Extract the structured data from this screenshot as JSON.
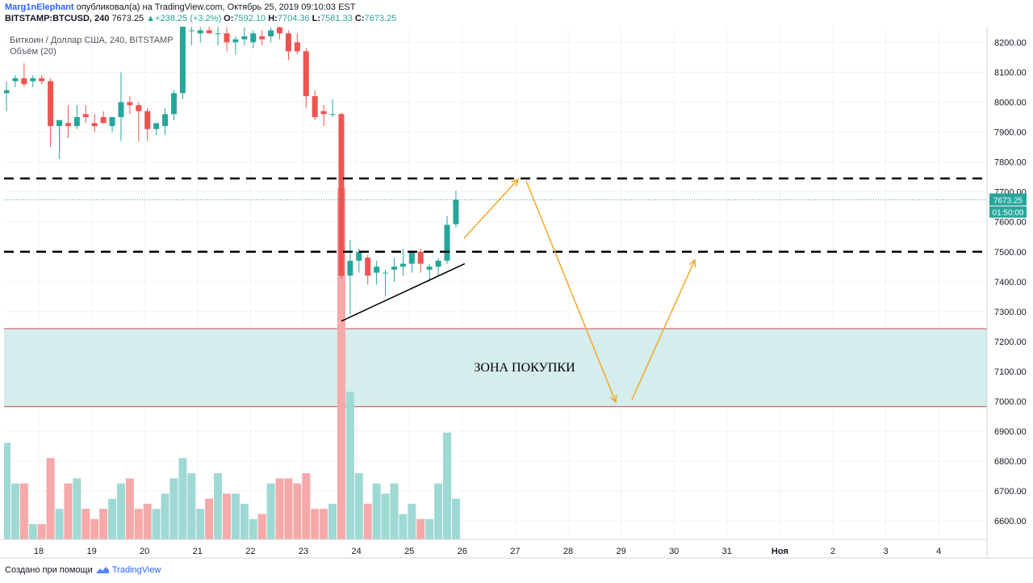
{
  "header": {
    "author": "Marg1nElephant",
    "published_text": "опубликовал(а) на TradingView.com, Октябрь 25, 2019 09:10:03 EST",
    "symbol": "BITSTAMP:BTCUSD, 240",
    "last": "7673.25",
    "change": "+238.25 (+3.2%)",
    "o_label": "O:",
    "o_val": "7592.10",
    "h_label": "H:",
    "h_val": "7704.36",
    "l_label": "L:",
    "l_val": "7581.33",
    "c_label": "C:",
    "c_val": "7673.25"
  },
  "legend": {
    "title": "Биткоин / Доллар США, 240, BITSTAMP",
    "volume": "Объём (20)"
  },
  "footer": {
    "created_text": "Создано при помощи",
    "brand": "TradingView"
  },
  "colors": {
    "up": "#26a69a",
    "down": "#ef5350",
    "up_volume": "#9fd9d3",
    "down_volume": "#f5a9a8",
    "buy_zone": "#d5edec",
    "arrow": "#f5a623",
    "price_tag": "#26a69a"
  },
  "chart_data": {
    "type": "candlestick",
    "title": "Биткоин / Доллар США, 240, BITSTAMP",
    "timeframe": "240",
    "x_labels": [
      "18",
      "19",
      "20",
      "21",
      "22",
      "23",
      "24",
      "25",
      "26",
      "27",
      "28",
      "29",
      "30",
      "31",
      "Ноя",
      "2",
      "3",
      "4"
    ],
    "y_ticks": [
      6600,
      6700,
      6800,
      6900,
      7000,
      7100,
      7200,
      7300,
      7400,
      7500,
      7600,
      7700,
      7800,
      7900,
      8000,
      8100,
      8200
    ],
    "ylim": [
      6530,
      8250
    ],
    "ohlc": [
      [
        8030,
        8070,
        7970,
        8040
      ],
      [
        8070,
        8090,
        8050,
        8080
      ],
      [
        8080,
        8130,
        8050,
        8060
      ],
      [
        8070,
        8090,
        8050,
        8080
      ],
      [
        8080,
        8090,
        8060,
        8070
      ],
      [
        8070,
        8080,
        7850,
        7920
      ],
      [
        7920,
        7940,
        7810,
        7940
      ],
      [
        7930,
        7990,
        7880,
        7920
      ],
      [
        7920,
        7990,
        7910,
        7950
      ],
      [
        7960,
        7990,
        7930,
        7950
      ],
      [
        7930,
        7960,
        7900,
        7920
      ],
      [
        7950,
        7970,
        7930,
        7930
      ],
      [
        7920,
        7950,
        7900,
        7950
      ],
      [
        7950,
        8100,
        7870,
        8000
      ],
      [
        8000,
        8020,
        7960,
        7990
      ],
      [
        7990,
        8000,
        7870,
        7970
      ],
      [
        7970,
        7980,
        7870,
        7910
      ],
      [
        7910,
        7930,
        7890,
        7930
      ],
      [
        7920,
        7980,
        7890,
        7960
      ],
      [
        7960,
        8040,
        7940,
        8030
      ],
      [
        8030,
        8340,
        8010,
        8280
      ],
      [
        8240,
        8270,
        8190,
        8240
      ],
      [
        8230,
        8250,
        8200,
        8240
      ],
      [
        8240,
        8270,
        8230,
        8230
      ],
      [
        8230,
        8260,
        8190,
        8230
      ],
      [
        8230,
        8250,
        8170,
        8200
      ],
      [
        8200,
        8220,
        8160,
        8210
      ],
      [
        8210,
        8250,
        8190,
        8220
      ],
      [
        8200,
        8240,
        8180,
        8230
      ],
      [
        8220,
        8240,
        8190,
        8210
      ],
      [
        8220,
        8250,
        8200,
        8240
      ],
      [
        8250,
        8270,
        8210,
        8230
      ],
      [
        8230,
        8240,
        8140,
        8170
      ],
      [
        8200,
        8230,
        8160,
        8170
      ],
      [
        8170,
        8180,
        7980,
        8020
      ],
      [
        8020,
        8040,
        7940,
        7950
      ],
      [
        7970,
        7990,
        7920,
        7960
      ],
      [
        7960,
        8010,
        7950,
        7960
      ],
      [
        7960,
        7965,
        7410,
        7420
      ],
      [
        7420,
        7540,
        7290,
        7470
      ],
      [
        7470,
        7510,
        7430,
        7500
      ],
      [
        7480,
        7490,
        7390,
        7420
      ],
      [
        7430,
        7470,
        7390,
        7450
      ],
      [
        7430,
        7440,
        7350,
        7430
      ],
      [
        7440,
        7480,
        7400,
        7450
      ],
      [
        7450,
        7510,
        7420,
        7460
      ],
      [
        7460,
        7500,
        7430,
        7500
      ],
      [
        7500,
        7510,
        7430,
        7460
      ],
      [
        7440,
        7460,
        7400,
        7450
      ],
      [
        7450,
        7480,
        7420,
        7470
      ],
      [
        7470,
        7620,
        7460,
        7590
      ],
      [
        7592.1,
        7704.36,
        7581.33,
        7673.25
      ]
    ],
    "volume_relative": [
      0.19,
      0.11,
      0.11,
      0.03,
      0.03,
      0.16,
      0.06,
      0.11,
      0.12,
      0.06,
      0.04,
      0.06,
      0.08,
      0.11,
      0.12,
      0.06,
      0.07,
      0.06,
      0.09,
      0.12,
      0.16,
      0.13,
      0.06,
      0.08,
      0.13,
      0.09,
      0.09,
      0.07,
      0.04,
      0.05,
      0.11,
      0.12,
      0.12,
      0.11,
      0.13,
      0.06,
      0.06,
      0.07,
      0.69,
      0.29,
      0.13,
      0.07,
      0.11,
      0.09,
      0.11,
      0.05,
      0.07,
      0.04,
      0.04,
      0.11,
      0.21,
      0.08
    ],
    "current_price": 7673.25,
    "current_price_label": "7673.25",
    "countdown_label": "01:50:00",
    "levels": [
      7745,
      7500
    ],
    "buy_zone": {
      "label": "ЗОНА ПОКУПКИ",
      "from": 6982,
      "to": 7243
    },
    "trendline": {
      "from": [
        7268,
        38
      ],
      "to": [
        7460,
        52
      ]
    }
  }
}
